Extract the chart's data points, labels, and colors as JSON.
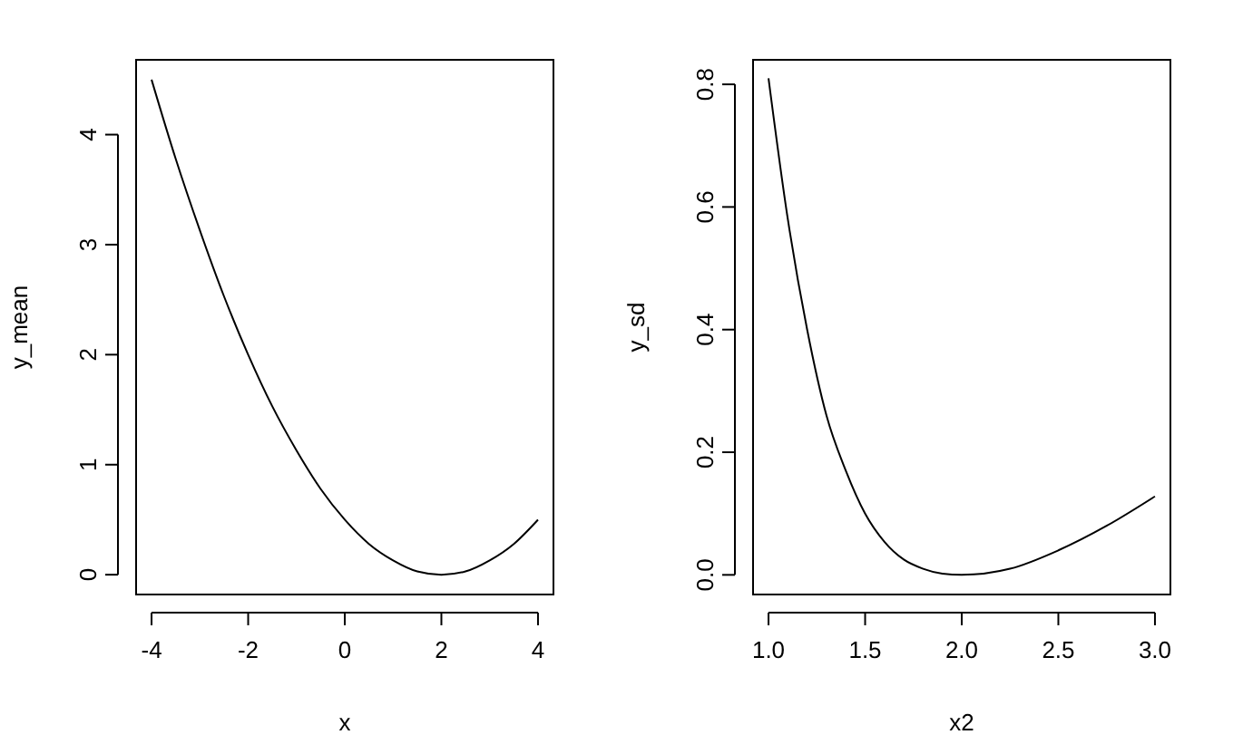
{
  "chart_data": [
    {
      "type": "line",
      "xlabel": "x",
      "ylabel": "y_mean",
      "xlim": [
        -4.32,
        4.32
      ],
      "ylim": [
        -0.18,
        4.68
      ],
      "xticks": [
        -4,
        -2,
        0,
        2,
        4
      ],
      "yticks": [
        0,
        1,
        2,
        3,
        4
      ],
      "grid": false,
      "line_style": "solid",
      "marker": "none",
      "series": [
        {
          "color": "#000000",
          "x": [
            -4,
            -3.5,
            -3,
            -2.5,
            -2,
            -1.5,
            -1,
            -0.5,
            0,
            0.5,
            1,
            1.5,
            2,
            2.5,
            3,
            3.5,
            4
          ],
          "values": [
            4.5,
            3.78,
            3.13,
            2.53,
            2.0,
            1.53,
            1.13,
            0.78,
            0.5,
            0.28,
            0.13,
            0.03,
            0,
            0.03,
            0.13,
            0.28,
            0.5
          ]
        }
      ]
    },
    {
      "type": "line",
      "xlabel": "x2",
      "ylabel": "y_sd",
      "xlim": [
        0.92,
        3.08
      ],
      "ylim": [
        -0.032,
        0.84
      ],
      "xticks": [
        {
          "value": 1,
          "label": "1.0"
        },
        1.5,
        {
          "value": 2,
          "label": "2.0"
        },
        2.5,
        {
          "value": 3,
          "label": "3.0"
        }
      ],
      "yticks": [
        {
          "value": 0,
          "label": "0.0"
        },
        0.2,
        0.4,
        0.6,
        0.8
      ],
      "grid": false,
      "line_style": "solid",
      "marker": "none",
      "series": [
        {
          "color": "#000000",
          "x": [
            1,
            1.1,
            1.2,
            1.3,
            1.4,
            1.5,
            1.6,
            1.7,
            1.8,
            1.9,
            2,
            2.25,
            2.5,
            2.75,
            3
          ],
          "values": [
            0.81,
            0.58,
            0.4,
            0.26,
            0.17,
            0.1,
            0.054,
            0.025,
            0.01,
            0.002,
            0,
            0.01,
            0.04,
            0.08,
            0.128
          ]
        }
      ]
    }
  ]
}
